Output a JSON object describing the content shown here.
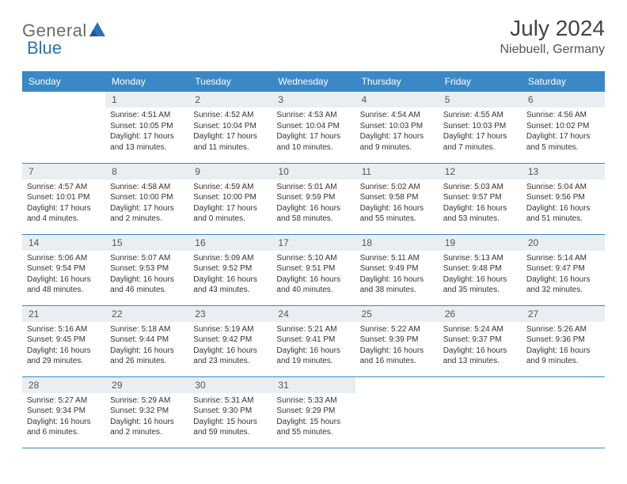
{
  "logo": {
    "general": "General",
    "blue": "Blue"
  },
  "title": {
    "month": "July 2024",
    "location": "Niebuell, Germany"
  },
  "colors": {
    "header_bg": "#3b88c6",
    "header_text": "#ffffff",
    "daynum_bg": "#e9eef2",
    "row_border": "#3b88c6",
    "logo_gray": "#6a6a6a",
    "logo_blue": "#2a72b5"
  },
  "weekdays": [
    "Sunday",
    "Monday",
    "Tuesday",
    "Wednesday",
    "Thursday",
    "Friday",
    "Saturday"
  ],
  "weeks": [
    [
      {
        "empty": true
      },
      {
        "num": "1",
        "sunrise": "Sunrise: 4:51 AM",
        "sunset": "Sunset: 10:05 PM",
        "daylight": "Daylight: 17 hours and 13 minutes."
      },
      {
        "num": "2",
        "sunrise": "Sunrise: 4:52 AM",
        "sunset": "Sunset: 10:04 PM",
        "daylight": "Daylight: 17 hours and 11 minutes."
      },
      {
        "num": "3",
        "sunrise": "Sunrise: 4:53 AM",
        "sunset": "Sunset: 10:04 PM",
        "daylight": "Daylight: 17 hours and 10 minutes."
      },
      {
        "num": "4",
        "sunrise": "Sunrise: 4:54 AM",
        "sunset": "Sunset: 10:03 PM",
        "daylight": "Daylight: 17 hours and 9 minutes."
      },
      {
        "num": "5",
        "sunrise": "Sunrise: 4:55 AM",
        "sunset": "Sunset: 10:03 PM",
        "daylight": "Daylight: 17 hours and 7 minutes."
      },
      {
        "num": "6",
        "sunrise": "Sunrise: 4:56 AM",
        "sunset": "Sunset: 10:02 PM",
        "daylight": "Daylight: 17 hours and 5 minutes."
      }
    ],
    [
      {
        "num": "7",
        "sunrise": "Sunrise: 4:57 AM",
        "sunset": "Sunset: 10:01 PM",
        "daylight": "Daylight: 17 hours and 4 minutes."
      },
      {
        "num": "8",
        "sunrise": "Sunrise: 4:58 AM",
        "sunset": "Sunset: 10:00 PM",
        "daylight": "Daylight: 17 hours and 2 minutes."
      },
      {
        "num": "9",
        "sunrise": "Sunrise: 4:59 AM",
        "sunset": "Sunset: 10:00 PM",
        "daylight": "Daylight: 17 hours and 0 minutes."
      },
      {
        "num": "10",
        "sunrise": "Sunrise: 5:01 AM",
        "sunset": "Sunset: 9:59 PM",
        "daylight": "Daylight: 16 hours and 58 minutes."
      },
      {
        "num": "11",
        "sunrise": "Sunrise: 5:02 AM",
        "sunset": "Sunset: 9:58 PM",
        "daylight": "Daylight: 16 hours and 55 minutes."
      },
      {
        "num": "12",
        "sunrise": "Sunrise: 5:03 AM",
        "sunset": "Sunset: 9:57 PM",
        "daylight": "Daylight: 16 hours and 53 minutes."
      },
      {
        "num": "13",
        "sunrise": "Sunrise: 5:04 AM",
        "sunset": "Sunset: 9:56 PM",
        "daylight": "Daylight: 16 hours and 51 minutes."
      }
    ],
    [
      {
        "num": "14",
        "sunrise": "Sunrise: 5:06 AM",
        "sunset": "Sunset: 9:54 PM",
        "daylight": "Daylight: 16 hours and 48 minutes."
      },
      {
        "num": "15",
        "sunrise": "Sunrise: 5:07 AM",
        "sunset": "Sunset: 9:53 PM",
        "daylight": "Daylight: 16 hours and 46 minutes."
      },
      {
        "num": "16",
        "sunrise": "Sunrise: 5:09 AM",
        "sunset": "Sunset: 9:52 PM",
        "daylight": "Daylight: 16 hours and 43 minutes."
      },
      {
        "num": "17",
        "sunrise": "Sunrise: 5:10 AM",
        "sunset": "Sunset: 9:51 PM",
        "daylight": "Daylight: 16 hours and 40 minutes."
      },
      {
        "num": "18",
        "sunrise": "Sunrise: 5:11 AM",
        "sunset": "Sunset: 9:49 PM",
        "daylight": "Daylight: 16 hours and 38 minutes."
      },
      {
        "num": "19",
        "sunrise": "Sunrise: 5:13 AM",
        "sunset": "Sunset: 9:48 PM",
        "daylight": "Daylight: 16 hours and 35 minutes."
      },
      {
        "num": "20",
        "sunrise": "Sunrise: 5:14 AM",
        "sunset": "Sunset: 9:47 PM",
        "daylight": "Daylight: 16 hours and 32 minutes."
      }
    ],
    [
      {
        "num": "21",
        "sunrise": "Sunrise: 5:16 AM",
        "sunset": "Sunset: 9:45 PM",
        "daylight": "Daylight: 16 hours and 29 minutes."
      },
      {
        "num": "22",
        "sunrise": "Sunrise: 5:18 AM",
        "sunset": "Sunset: 9:44 PM",
        "daylight": "Daylight: 16 hours and 26 minutes."
      },
      {
        "num": "23",
        "sunrise": "Sunrise: 5:19 AM",
        "sunset": "Sunset: 9:42 PM",
        "daylight": "Daylight: 16 hours and 23 minutes."
      },
      {
        "num": "24",
        "sunrise": "Sunrise: 5:21 AM",
        "sunset": "Sunset: 9:41 PM",
        "daylight": "Daylight: 16 hours and 19 minutes."
      },
      {
        "num": "25",
        "sunrise": "Sunrise: 5:22 AM",
        "sunset": "Sunset: 9:39 PM",
        "daylight": "Daylight: 16 hours and 16 minutes."
      },
      {
        "num": "26",
        "sunrise": "Sunrise: 5:24 AM",
        "sunset": "Sunset: 9:37 PM",
        "daylight": "Daylight: 16 hours and 13 minutes."
      },
      {
        "num": "27",
        "sunrise": "Sunrise: 5:26 AM",
        "sunset": "Sunset: 9:36 PM",
        "daylight": "Daylight: 16 hours and 9 minutes."
      }
    ],
    [
      {
        "num": "28",
        "sunrise": "Sunrise: 5:27 AM",
        "sunset": "Sunset: 9:34 PM",
        "daylight": "Daylight: 16 hours and 6 minutes."
      },
      {
        "num": "29",
        "sunrise": "Sunrise: 5:29 AM",
        "sunset": "Sunset: 9:32 PM",
        "daylight": "Daylight: 16 hours and 2 minutes."
      },
      {
        "num": "30",
        "sunrise": "Sunrise: 5:31 AM",
        "sunset": "Sunset: 9:30 PM",
        "daylight": "Daylight: 15 hours and 59 minutes."
      },
      {
        "num": "31",
        "sunrise": "Sunrise: 5:33 AM",
        "sunset": "Sunset: 9:29 PM",
        "daylight": "Daylight: 15 hours and 55 minutes."
      },
      {
        "empty": true
      },
      {
        "empty": true
      },
      {
        "empty": true
      }
    ]
  ]
}
